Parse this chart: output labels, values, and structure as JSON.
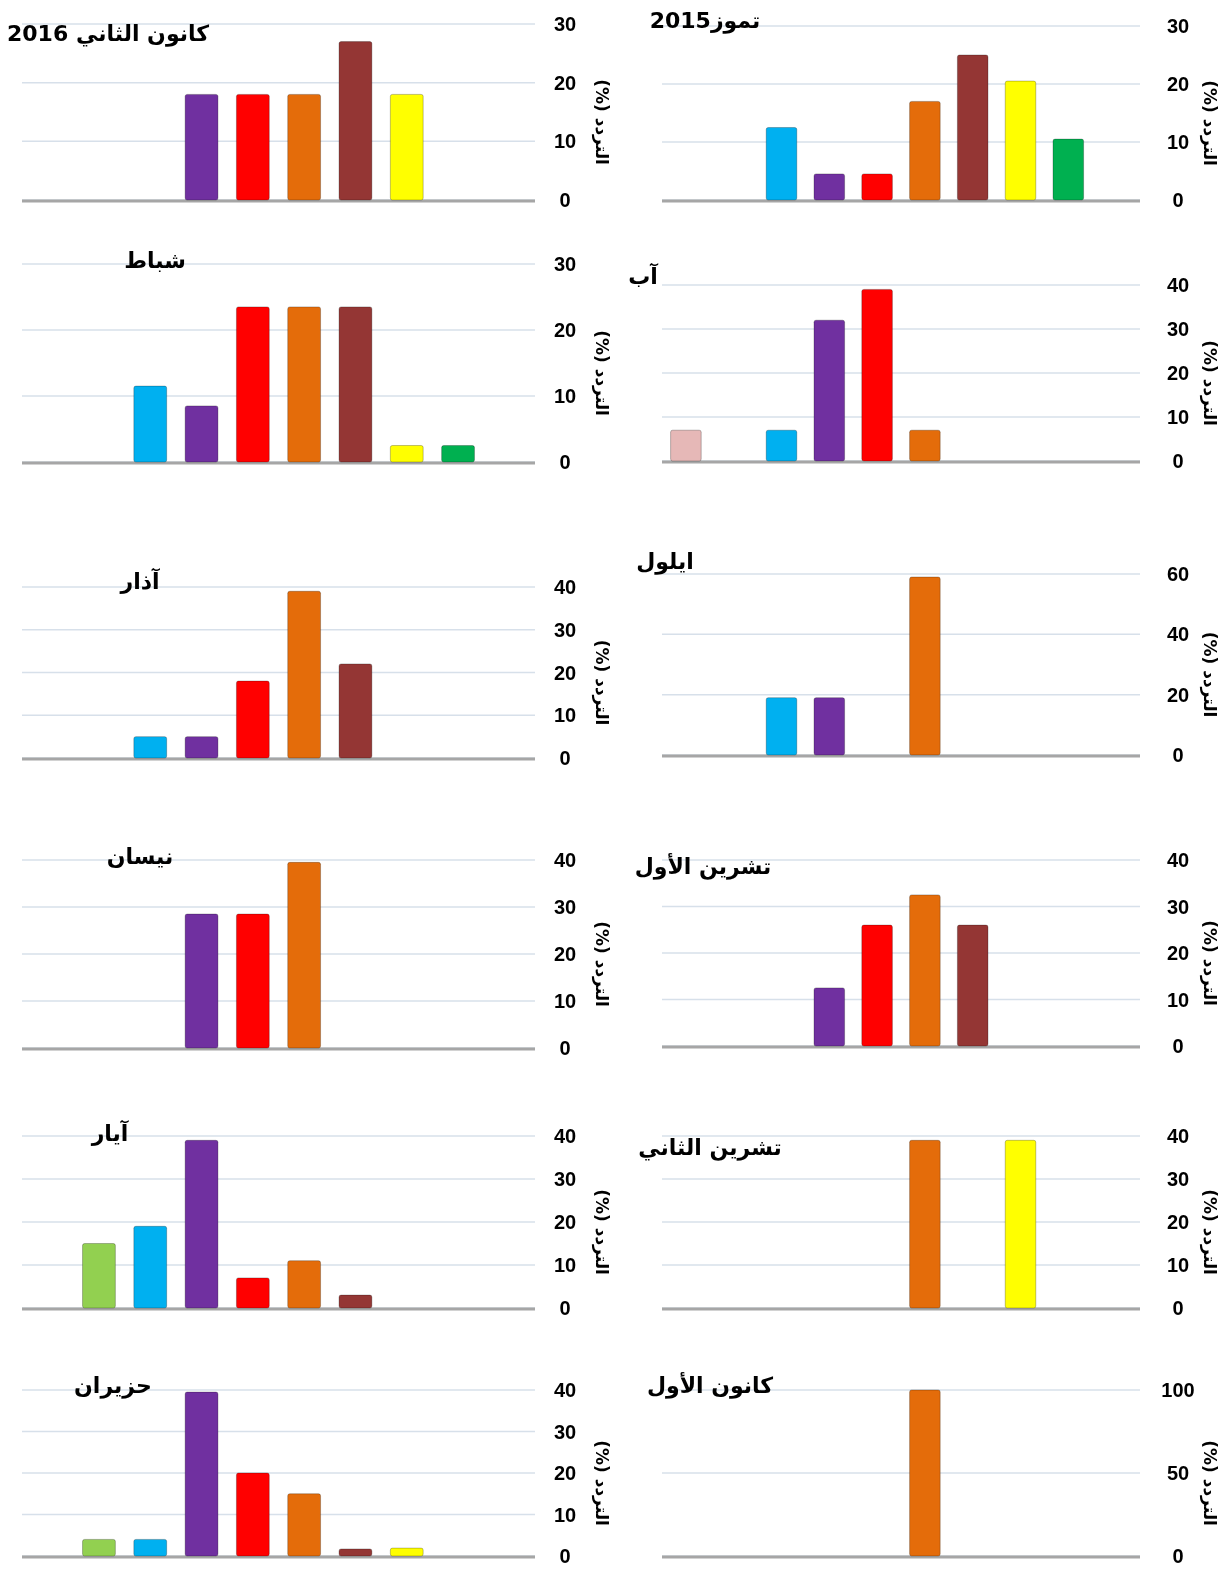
{
  "chart_data": [
    {
      "type": "bar",
      "title": "كانون الثاني 2016",
      "ylabel": "التردد (%)",
      "categories": [
        null,
        null,
        null,
        null,
        null,
        null,
        null,
        null,
        null,
        null
      ],
      "values": [
        0,
        0,
        0,
        18,
        18,
        18,
        27,
        18,
        0,
        0
      ],
      "colors": [
        "#e6b8b7",
        "#92d050",
        "#00b0f0",
        "#7030a0",
        "#ff0000",
        "#e46c0a",
        "#943634",
        "#ffff00",
        "#00b050",
        "#1f497d"
      ],
      "ylim": [
        0,
        30
      ],
      "yticks": [
        0,
        10,
        20,
        30
      ],
      "grid": "y"
    },
    {
      "type": "bar",
      "title": "تموز2015",
      "ylabel": "التردد (%)",
      "categories": [
        null,
        null,
        null,
        null,
        null,
        null,
        null,
        null,
        null,
        null
      ],
      "values": [
        0,
        0,
        12.5,
        4.5,
        4.5,
        17,
        25,
        20.5,
        10.5,
        0
      ],
      "colors": [
        "#e6b8b7",
        "#92d050",
        "#00b0f0",
        "#7030a0",
        "#ff0000",
        "#e46c0a",
        "#943634",
        "#ffff00",
        "#00b050",
        "#1f497d"
      ],
      "ylim": [
        0,
        30
      ],
      "yticks": [
        0,
        10,
        20,
        30
      ],
      "grid": "y"
    },
    {
      "type": "bar",
      "title": "شباط",
      "ylabel": "التردد (%)",
      "categories": [
        null,
        null,
        null,
        null,
        null,
        null,
        null,
        null,
        null,
        null
      ],
      "values": [
        0,
        0,
        11.5,
        8.5,
        23.5,
        23.5,
        23.5,
        2.5,
        2.5,
        0
      ],
      "colors": [
        "#e6b8b7",
        "#92d050",
        "#00b0f0",
        "#7030a0",
        "#ff0000",
        "#e46c0a",
        "#943634",
        "#ffff00",
        "#00b050",
        "#1f497d"
      ],
      "ylim": [
        0,
        30
      ],
      "yticks": [
        0,
        10,
        20,
        30
      ],
      "grid": "y"
    },
    {
      "type": "bar",
      "title": "آب",
      "ylabel": "التردد (%)",
      "categories": [
        null,
        null,
        null,
        null,
        null,
        null,
        null,
        null,
        null,
        null
      ],
      "values": [
        7,
        0,
        7,
        32,
        39,
        7,
        0,
        0,
        0,
        0
      ],
      "colors": [
        "#e6b8b7",
        "#92d050",
        "#00b0f0",
        "#7030a0",
        "#ff0000",
        "#e46c0a",
        "#943634",
        "#ffff00",
        "#00b050",
        "#1f497d"
      ],
      "ylim": [
        0,
        40
      ],
      "yticks": [
        0,
        10,
        20,
        30,
        40
      ],
      "grid": "y"
    },
    {
      "type": "bar",
      "title": "آذار",
      "ylabel": "التردد (%)",
      "categories": [
        null,
        null,
        null,
        null,
        null,
        null,
        null,
        null,
        null,
        null
      ],
      "values": [
        0,
        0,
        5,
        5,
        18,
        39,
        22,
        0,
        0,
        0
      ],
      "colors": [
        "#e6b8b7",
        "#92d050",
        "#00b0f0",
        "#7030a0",
        "#ff0000",
        "#e46c0a",
        "#943634",
        "#ffff00",
        "#00b050",
        "#1f497d"
      ],
      "ylim": [
        0,
        40
      ],
      "yticks": [
        0,
        10,
        20,
        30,
        40
      ],
      "grid": "y"
    },
    {
      "type": "bar",
      "title": "ايلول",
      "ylabel": "التردد (%)",
      "categories": [
        null,
        null,
        null,
        null,
        null,
        null,
        null,
        null,
        null,
        null
      ],
      "values": [
        0,
        0,
        19,
        19,
        0,
        59,
        0,
        0,
        0,
        0
      ],
      "colors": [
        "#e6b8b7",
        "#92d050",
        "#00b0f0",
        "#7030a0",
        "#ff0000",
        "#e46c0a",
        "#943634",
        "#ffff00",
        "#00b050",
        "#1f497d"
      ],
      "ylim": [
        0,
        60
      ],
      "yticks": [
        0,
        20,
        40,
        60
      ],
      "grid": "y"
    },
    {
      "type": "bar",
      "title": "نيسان",
      "ylabel": "التردد (%)",
      "categories": [
        null,
        null,
        null,
        null,
        null,
        null,
        null,
        null,
        null,
        null
      ],
      "values": [
        0,
        0,
        0,
        28.5,
        28.5,
        39.5,
        0,
        0,
        0,
        0
      ],
      "colors": [
        "#e6b8b7",
        "#92d050",
        "#00b0f0",
        "#7030a0",
        "#ff0000",
        "#e46c0a",
        "#943634",
        "#ffff00",
        "#00b050",
        "#1f497d"
      ],
      "ylim": [
        0,
        40
      ],
      "yticks": [
        0,
        10,
        20,
        30,
        40
      ],
      "grid": "y"
    },
    {
      "type": "bar",
      "title": "تشرين الأول",
      "ylabel": "التردد (%)",
      "categories": [
        null,
        null,
        null,
        null,
        null,
        null,
        null,
        null,
        null,
        null
      ],
      "values": [
        0,
        0,
        0,
        12.5,
        26,
        32.5,
        26,
        0,
        0,
        0
      ],
      "colors": [
        "#e6b8b7",
        "#92d050",
        "#00b0f0",
        "#7030a0",
        "#ff0000",
        "#e46c0a",
        "#943634",
        "#ffff00",
        "#00b050",
        "#1f497d"
      ],
      "ylim": [
        0,
        40
      ],
      "yticks": [
        0,
        10,
        20,
        30,
        40
      ],
      "grid": "y"
    },
    {
      "type": "bar",
      "title": "آيار",
      "ylabel": "التردد (%)",
      "categories": [
        null,
        null,
        null,
        null,
        null,
        null,
        null,
        null,
        null,
        null
      ],
      "values": [
        0,
        15,
        19,
        39,
        7,
        11,
        3,
        0,
        0,
        0
      ],
      "colors": [
        "#e6b8b7",
        "#92d050",
        "#00b0f0",
        "#7030a0",
        "#ff0000",
        "#e46c0a",
        "#943634",
        "#ffff00",
        "#00b050",
        "#1f497d"
      ],
      "ylim": [
        0,
        40
      ],
      "yticks": [
        0,
        10,
        20,
        30,
        40
      ],
      "grid": "y"
    },
    {
      "type": "bar",
      "title": "تشرين  الثاني",
      "ylabel": "التردد (%)",
      "categories": [
        null,
        null,
        null,
        null,
        null,
        null,
        null,
        null,
        null,
        null
      ],
      "values": [
        0,
        0,
        0,
        0,
        0,
        39,
        0,
        39,
        0,
        0
      ],
      "colors": [
        "#e6b8b7",
        "#92d050",
        "#00b0f0",
        "#7030a0",
        "#ff0000",
        "#e46c0a",
        "#943634",
        "#ffff00",
        "#00b050",
        "#1f497d"
      ],
      "ylim": [
        0,
        40
      ],
      "yticks": [
        0,
        10,
        20,
        30,
        40
      ],
      "grid": "y"
    },
    {
      "type": "bar",
      "title": "حزيران",
      "ylabel": "التردد (%)",
      "categories": [
        null,
        null,
        null,
        null,
        null,
        null,
        null,
        null,
        null,
        null
      ],
      "values": [
        0,
        4,
        4,
        39.5,
        20,
        15,
        1.7,
        1.9,
        0,
        0
      ],
      "colors": [
        "#e6b8b7",
        "#92d050",
        "#00b0f0",
        "#7030a0",
        "#ff0000",
        "#e46c0a",
        "#943634",
        "#ffff00",
        "#00b050",
        "#1f497d"
      ],
      "ylim": [
        0,
        40
      ],
      "yticks": [
        0,
        10,
        20,
        30,
        40
      ],
      "grid": "y"
    },
    {
      "type": "bar",
      "title": "كانون الأول",
      "ylabel": "التردد (%)",
      "categories": [
        null,
        null,
        null,
        null,
        null,
        null,
        null,
        null,
        null,
        null
      ],
      "values": [
        0,
        0,
        0,
        0,
        0,
        100,
        0,
        0,
        0,
        0
      ],
      "colors": [
        "#e6b8b7",
        "#92d050",
        "#00b0f0",
        "#7030a0",
        "#ff0000",
        "#e46c0a",
        "#943634",
        "#ffff00",
        "#00b050",
        "#1f497d"
      ],
      "ylim": [
        0,
        100
      ],
      "yticks": [
        0,
        50,
        100
      ],
      "grid": "y"
    }
  ]
}
